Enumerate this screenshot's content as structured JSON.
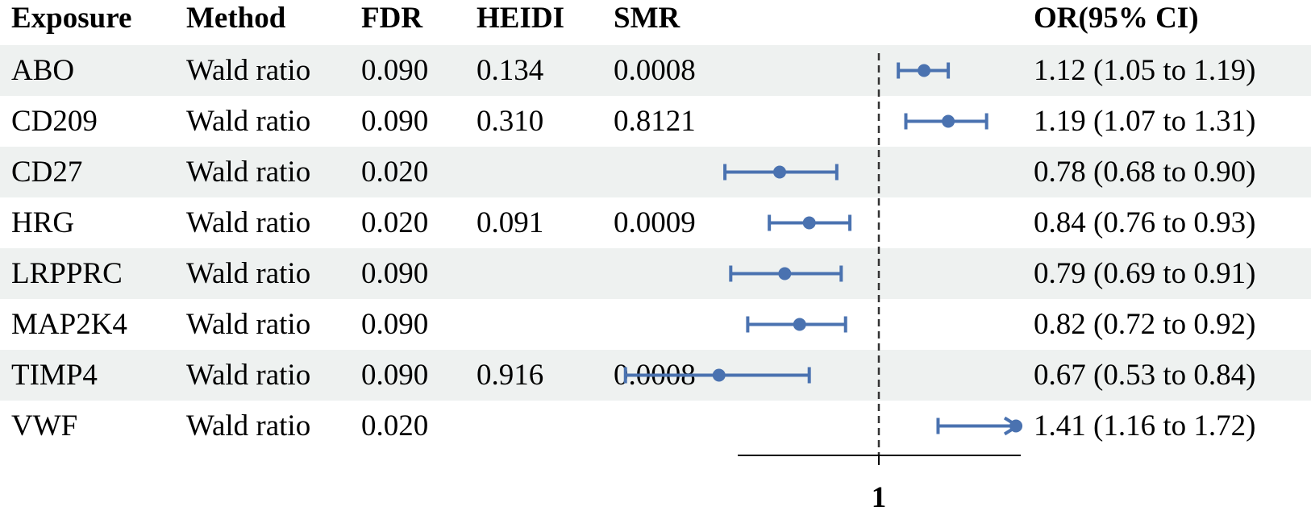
{
  "headers": {
    "exposure": "Exposure",
    "method": "Method",
    "fdr": "FDR",
    "heidi": "HEIDI",
    "smr": "SMR",
    "or_ci": "OR(95% CI)"
  },
  "rows": [
    {
      "exposure": "ABO",
      "method": "Wald ratio",
      "fdr": "0.090",
      "heidi": "0.134",
      "smr": "0.0008",
      "or_ci": "1.12 (1.05 to 1.19)"
    },
    {
      "exposure": "CD209",
      "method": "Wald ratio",
      "fdr": "0.090",
      "heidi": "0.310",
      "smr": "0.8121",
      "or_ci": "1.19 (1.07 to 1.31)"
    },
    {
      "exposure": "CD27",
      "method": "Wald ratio",
      "fdr": "0.020",
      "heidi": "",
      "smr": "",
      "or_ci": "0.78 (0.68 to 0.90)"
    },
    {
      "exposure": "HRG",
      "method": "Wald ratio",
      "fdr": "0.020",
      "heidi": "0.091",
      "smr": "0.0009",
      "or_ci": "0.84 (0.76 to 0.93)"
    },
    {
      "exposure": "LRPPRC",
      "method": "Wald ratio",
      "fdr": "0.090",
      "heidi": "",
      "smr": "",
      "or_ci": "0.79 (0.69 to 0.91)"
    },
    {
      "exposure": "MAP2K4",
      "method": "Wald ratio",
      "fdr": "0.090",
      "heidi": "",
      "smr": "",
      "or_ci": "0.82 (0.72 to 0.92)"
    },
    {
      "exposure": "TIMP4",
      "method": "Wald ratio",
      "fdr": "0.090",
      "heidi": "0.916",
      "smr": "0.0008",
      "or_ci": "0.67 (0.53 to 0.84)"
    },
    {
      "exposure": "VWF",
      "method": "Wald ratio",
      "fdr": "0.020",
      "heidi": "",
      "smr": "",
      "or_ci": "1.41 (1.16 to 1.72)"
    }
  ],
  "chart_data": {
    "type": "forest",
    "categories": [
      "ABO",
      "CD209",
      "CD27",
      "HRG",
      "LRPPRC",
      "MAP2K4",
      "TIMP4",
      "VWF"
    ],
    "or": [
      1.12,
      1.19,
      0.78,
      0.84,
      0.79,
      0.82,
      0.67,
      1.41
    ],
    "lower": [
      1.05,
      1.07,
      0.68,
      0.76,
      0.69,
      0.72,
      0.53,
      1.16
    ],
    "upper": [
      1.19,
      1.31,
      0.9,
      0.93,
      0.91,
      0.92,
      0.84,
      1.72
    ],
    "reference_line": 1,
    "x_tick_labels": [
      "1"
    ],
    "xlim": [
      0.52,
      1.45
    ],
    "x_scale": "log",
    "marker_color": "#4a72b0",
    "reference_line_style": "dashed",
    "grid": false,
    "truncated_upper_arrow": [
      false,
      false,
      false,
      false,
      false,
      false,
      false,
      true
    ]
  },
  "colors": {
    "row_shading": "#eef1f0",
    "marker": "#4a72b0",
    "axis": "#000000"
  }
}
